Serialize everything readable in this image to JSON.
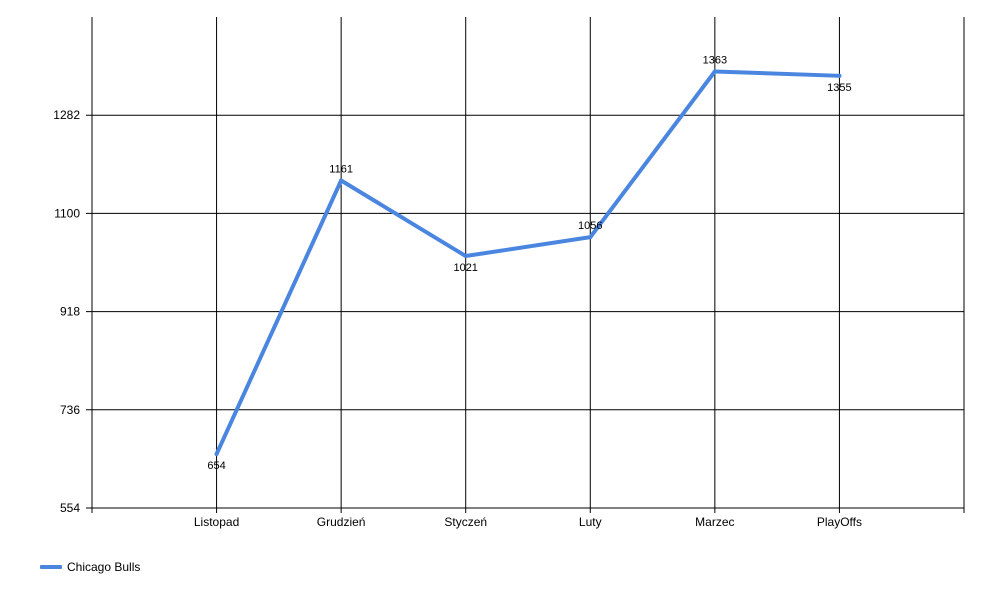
{
  "chart_data": {
    "type": "line",
    "categories": [
      "Listopad",
      "Grudzień",
      "Styczeń",
      "Luty",
      "Marzec",
      "PlayOffs"
    ],
    "series": [
      {
        "name": "Chicago Bulls",
        "values": [
          654,
          1161,
          1021,
          1056,
          1363,
          1355
        ],
        "color": "#4a86e0"
      }
    ],
    "y_ticks": [
      "554",
      "736",
      "918",
      "1100",
      "1282"
    ],
    "ylim": [
      554,
      1464
    ],
    "xlabel": "",
    "ylabel": "",
    "title": "",
    "grid": true,
    "legend_position": "bottom-left"
  }
}
